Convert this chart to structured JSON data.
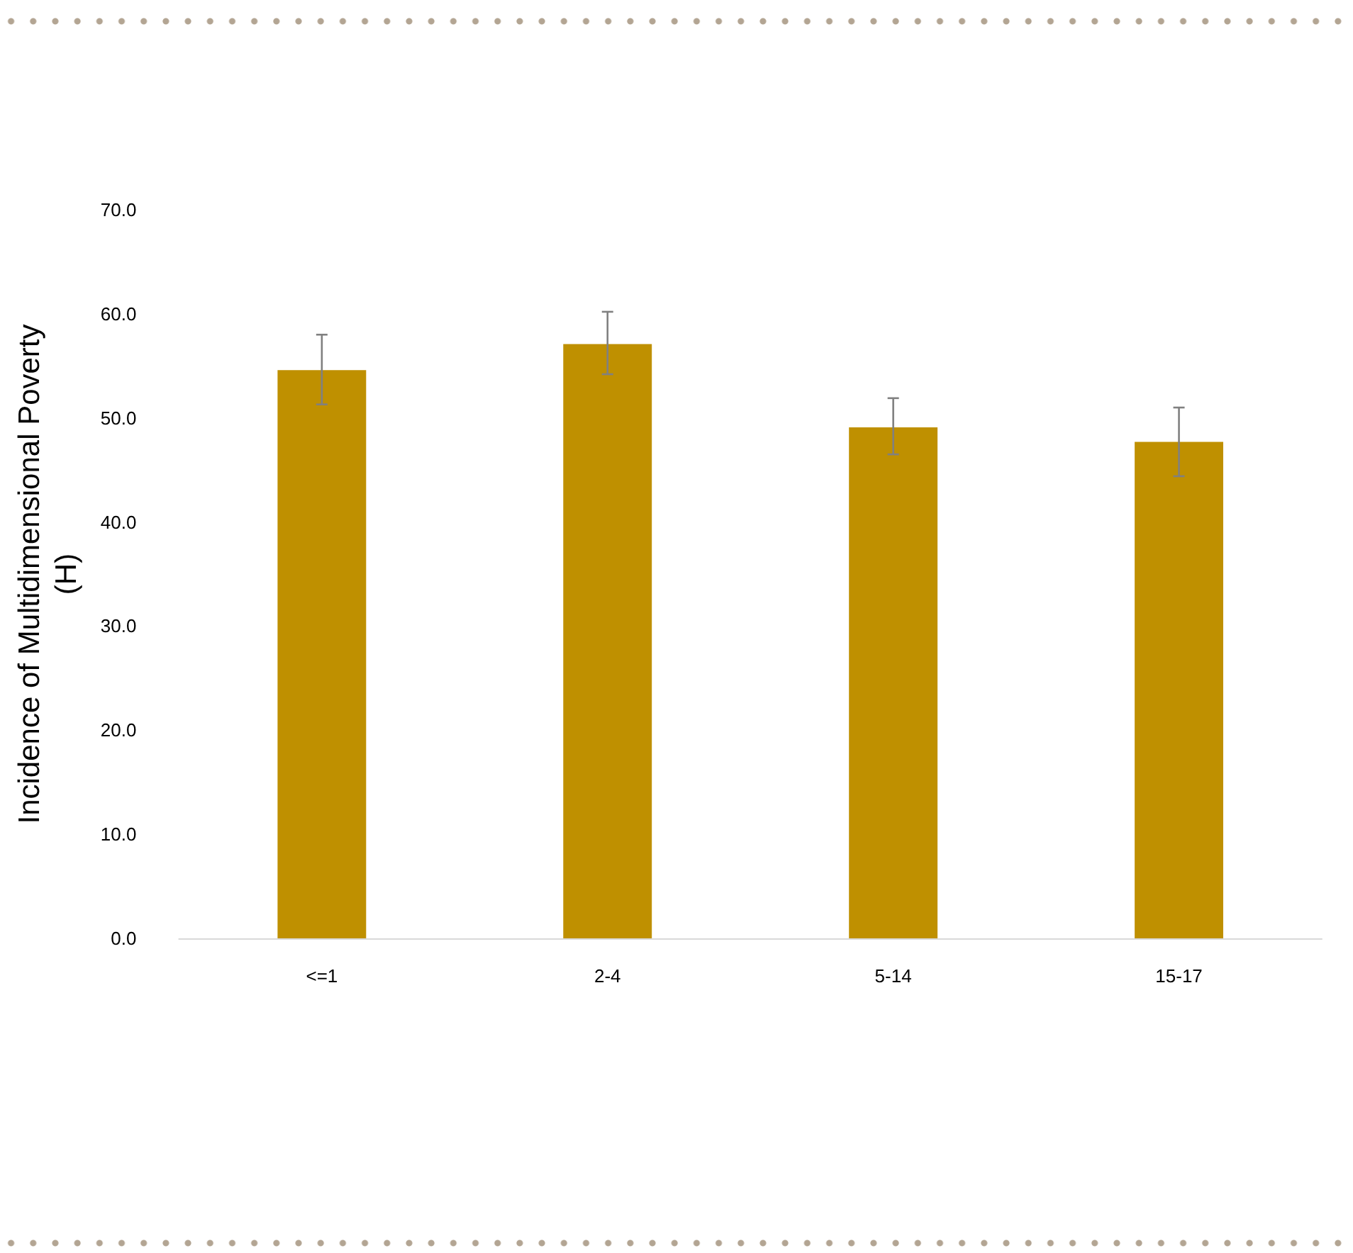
{
  "chart_data": {
    "type": "bar",
    "ylabel": "Incidence of Multidimensional Poverty\n(H)",
    "categories": [
      "<=1",
      "2-4",
      "5-14",
      "15-17"
    ],
    "values": [
      54.6,
      57.1,
      49.1,
      47.7
    ],
    "errors": [
      [
        51.3,
        58.0
      ],
      [
        54.2,
        60.2
      ],
      [
        46.5,
        51.9
      ],
      [
        44.4,
        51.0
      ]
    ],
    "color": "#bf9000",
    "ylim": [
      0,
      70
    ],
    "yticks": [
      {
        "value": 0,
        "label": "0.0"
      },
      {
        "value": 10,
        "label": "10.0"
      },
      {
        "value": 20,
        "label": "20.0"
      },
      {
        "value": 30,
        "label": "30.0"
      },
      {
        "value": 40,
        "label": "40.0"
      },
      {
        "value": 50,
        "label": "50.0"
      },
      {
        "value": 60,
        "label": "60.0"
      },
      {
        "value": 70,
        "label": "70.0"
      }
    ],
    "grid": false
  }
}
